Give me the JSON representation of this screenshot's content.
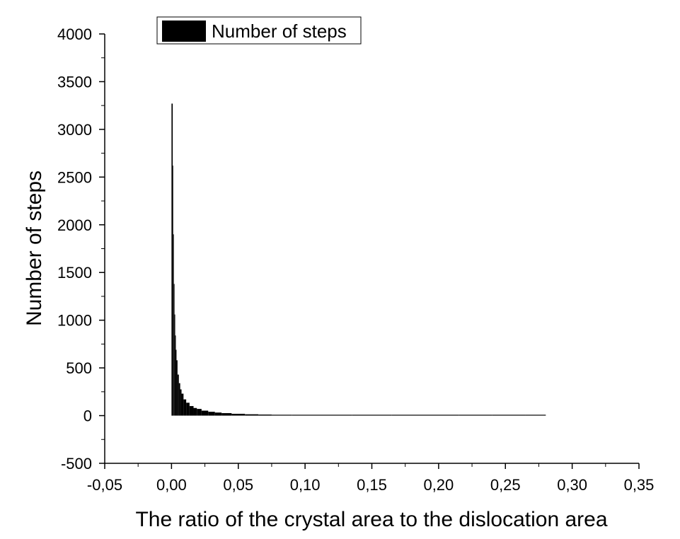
{
  "chart_data": {
    "type": "bar",
    "title": "",
    "xlabel": "The ratio of the crystal area to the dislocation area",
    "ylabel": "Number of steps",
    "xlim": [
      -0.05,
      0.35
    ],
    "ylim": [
      -500,
      4000
    ],
    "x_major_ticks": [
      -0.05,
      0.0,
      0.05,
      0.1,
      0.15,
      0.2,
      0.25,
      0.3,
      0.35
    ],
    "x_tick_labels": [
      "-0,05",
      "0,00",
      "0,05",
      "0,10",
      "0,15",
      "0,20",
      "0,25",
      "0,30",
      "0,35"
    ],
    "y_major_ticks": [
      -500,
      0,
      500,
      1000,
      1500,
      2000,
      2500,
      3000,
      3500,
      4000
    ],
    "y_tick_labels": [
      "-500",
      "0",
      "500",
      "1000",
      "1500",
      "2000",
      "2500",
      "3000",
      "3500",
      "4000"
    ],
    "grid": false,
    "legend": {
      "position": "top-left",
      "entries": [
        "Number of steps"
      ]
    },
    "series": [
      {
        "name": "Number of steps",
        "color": "#000000",
        "x": [
          0.0005,
          0.001,
          0.0015,
          0.002,
          0.0025,
          0.003,
          0.0035,
          0.004,
          0.005,
          0.006,
          0.007,
          0.008,
          0.01,
          0.012,
          0.015,
          0.018,
          0.02,
          0.025,
          0.03,
          0.035,
          0.04,
          0.05,
          0.06,
          0.07,
          0.08,
          0.1,
          0.12,
          0.15,
          0.18,
          0.2,
          0.23,
          0.25,
          0.28
        ],
        "values": [
          3270,
          2620,
          1900,
          1380,
          1060,
          840,
          690,
          580,
          430,
          340,
          275,
          230,
          170,
          135,
          100,
          80,
          70,
          52,
          40,
          32,
          26,
          19,
          14,
          11,
          9,
          6,
          4,
          3,
          2,
          2,
          1,
          1,
          1
        ]
      }
    ]
  }
}
